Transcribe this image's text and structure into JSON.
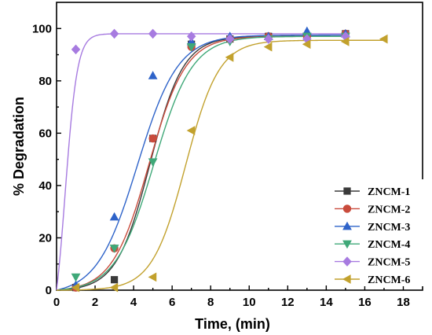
{
  "chart_data": {
    "type": "scatter",
    "xlabel": "Time, (min)",
    "ylabel": "% Degradation",
    "xlim": [
      0,
      19
    ],
    "ylim": [
      0,
      110
    ],
    "xticks": [
      0,
      2,
      4,
      6,
      8,
      10,
      12,
      14,
      16,
      18
    ],
    "yticks": [
      0,
      20,
      40,
      60,
      80,
      100
    ],
    "grid": false,
    "legend_position": "bottom-right",
    "series": [
      {
        "name": "ZNCM-1",
        "color": "#3a3a3a",
        "marker": "square",
        "x": [
          0,
          1,
          3,
          5,
          7,
          9,
          11,
          13,
          15
        ],
        "y": [
          0,
          1,
          4,
          58,
          94,
          96,
          97,
          97,
          98
        ],
        "fit": {
          "x0": 4.85,
          "k": 1.15,
          "max": 97
        }
      },
      {
        "name": "ZNCM-2",
        "color": "#c94b3c",
        "marker": "circle",
        "x": [
          0,
          1,
          3,
          5,
          7,
          9,
          11,
          13,
          15
        ],
        "y": [
          0,
          1,
          16,
          58,
          93,
          96,
          97,
          97,
          98
        ],
        "fit": {
          "x0": 4.8,
          "k": 1.05,
          "max": 97
        }
      },
      {
        "name": "ZNCM-3",
        "color": "#2e63c9",
        "marker": "triangle-up",
        "x": [
          0,
          1,
          3,
          5,
          7,
          9,
          11,
          13,
          15
        ],
        "y": [
          0,
          2,
          28,
          82,
          95,
          97,
          97,
          99,
          98
        ],
        "fit": {
          "x0": 4.2,
          "k": 0.95,
          "max": 97.5
        }
      },
      {
        "name": "ZNCM-4",
        "color": "#3fa878",
        "marker": "triangle-down",
        "x": [
          0,
          1,
          3,
          5,
          7,
          9,
          11,
          13,
          15
        ],
        "y": [
          0,
          5,
          16,
          49,
          93,
          95,
          96,
          97,
          97
        ],
        "fit": {
          "x0": 5.05,
          "k": 1.0,
          "max": 97
        }
      },
      {
        "name": "ZNCM-5",
        "color": "#a77be0",
        "marker": "diamond",
        "x": [
          0,
          1,
          3,
          5,
          7,
          9,
          11,
          13,
          15
        ],
        "y": [
          0,
          92,
          98,
          98,
          97,
          96,
          96,
          96,
          97
        ],
        "fit": {
          "x0": 0.45,
          "k": 3.2,
          "max": 98
        }
      },
      {
        "name": "ZNCM-6",
        "color": "#c2a12d",
        "marker": "triangle-left",
        "x": [
          0,
          1,
          3,
          5,
          7,
          9,
          11,
          13,
          15,
          17
        ],
        "y": [
          0,
          1,
          1,
          5,
          61,
          89,
          93,
          94,
          95,
          96
        ],
        "fit": {
          "x0": 6.7,
          "k": 1.15,
          "max": 95.5
        }
      }
    ]
  }
}
